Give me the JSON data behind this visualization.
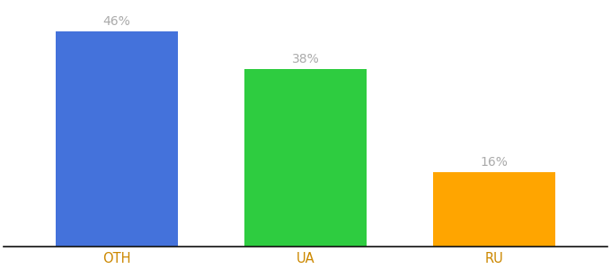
{
  "categories": [
    "OTH",
    "UA",
    "RU"
  ],
  "values": [
    46,
    38,
    16
  ],
  "bar_colors": [
    "#4472db",
    "#2ecc40",
    "#ffa500"
  ],
  "value_labels": [
    "46%",
    "38%",
    "16%"
  ],
  "background_color": "#ffffff",
  "bar_width": 0.65,
  "ylim": [
    0,
    52
  ],
  "label_fontsize": 10,
  "tick_fontsize": 10.5,
  "label_color": "#aaaaaa",
  "tick_color": "#cc8800"
}
